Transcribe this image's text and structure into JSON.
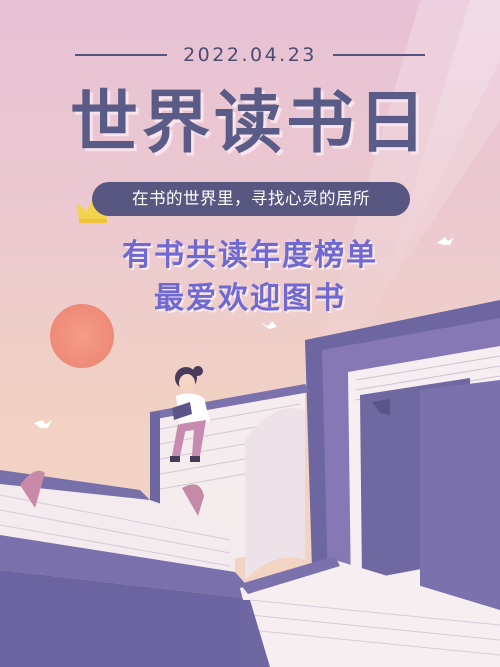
{
  "poster": {
    "date": "2022.04.23",
    "title": "世界读书日",
    "tagline": "在书的世界里，寻找心灵的居所",
    "subtitle_line1": "有书共读年度榜单",
    "subtitle_line2": "最爱欢迎图书"
  },
  "colors": {
    "title": "#5a5b87",
    "subtitle": "#7169d2",
    "pill": "#575782",
    "book_cover": "#7a6fa8",
    "sun": "#f08e7e"
  },
  "icons": [
    "crown-icon",
    "bird-icon",
    "sun-icon"
  ]
}
